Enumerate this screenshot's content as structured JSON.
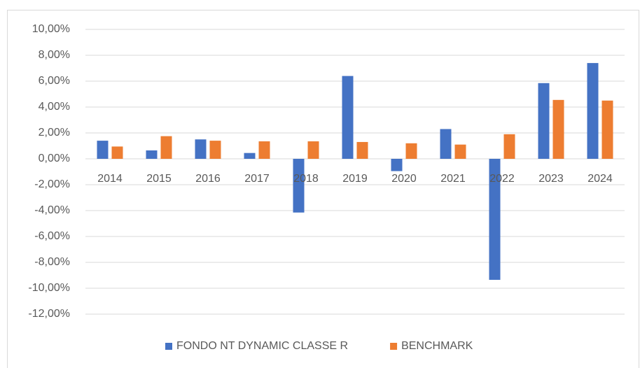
{
  "chart_data": {
    "type": "bar",
    "categories": [
      "2014",
      "2015",
      "2016",
      "2017",
      "2018",
      "2019",
      "2020",
      "2021",
      "2022",
      "2023",
      "2024"
    ],
    "series": [
      {
        "name": "FONDO NT DYNAMIC CLASSE R",
        "color": "#4472c4",
        "values": [
          1.4,
          0.65,
          1.5,
          0.45,
          -4.15,
          6.4,
          -0.95,
          2.3,
          -9.35,
          5.85,
          7.4
        ]
      },
      {
        "name": "BENCHMARK",
        "color": "#ed7d31",
        "values": [
          0.95,
          1.75,
          1.4,
          1.35,
          1.35,
          1.3,
          1.2,
          1.1,
          1.9,
          4.55,
          4.5
        ]
      }
    ],
    "ylim": [
      -12,
      10
    ],
    "yticks": [
      {
        "value": -12,
        "label": "-12,00%"
      },
      {
        "value": -10,
        "label": "-10,00%"
      },
      {
        "value": -8,
        "label": "-8,00%"
      },
      {
        "value": -6,
        "label": "-6,00%"
      },
      {
        "value": -4,
        "label": "-4,00%"
      },
      {
        "value": -2,
        "label": "-2,00%"
      },
      {
        "value": 0,
        "label": "0,00%"
      },
      {
        "value": 2,
        "label": "2,00%"
      },
      {
        "value": 4,
        "label": "4,00%"
      },
      {
        "value": 6,
        "label": "6,00%"
      },
      {
        "value": 8,
        "label": "8,00%"
      },
      {
        "value": 10,
        "label": "10,00%"
      }
    ],
    "grid": true,
    "legend": "bottom"
  }
}
